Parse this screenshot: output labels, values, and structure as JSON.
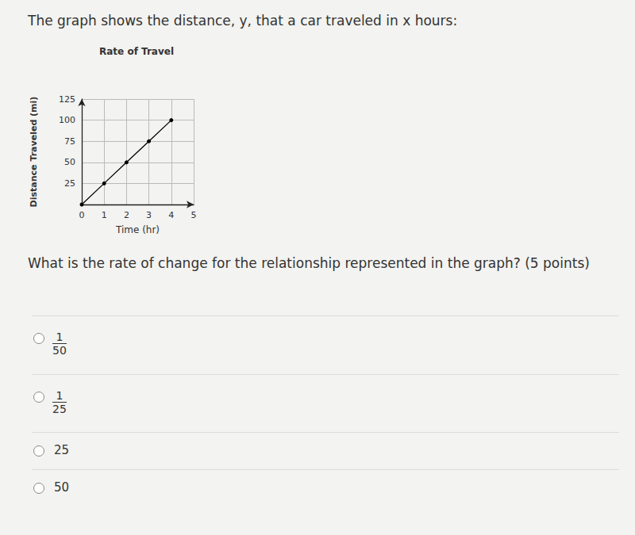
{
  "question": {
    "prompt": "The graph shows the distance, y, that a car traveled in x hours:",
    "text": "What is the rate of change for the relationship represented in the graph? (5 points)",
    "options": [
      {
        "numerator": "1",
        "denominator": "50"
      },
      {
        "numerator": "1",
        "denominator": "25"
      },
      {
        "text": "25"
      },
      {
        "text": "50"
      }
    ]
  },
  "chart_data": {
    "type": "line",
    "title": "Rate of Travel",
    "x_label": "Time (hr)",
    "y_label": "Distance Traveled (mi)",
    "x_name": "x",
    "y_name": "y",
    "x": [
      0,
      1,
      2,
      3,
      4
    ],
    "values": [
      0,
      25,
      50,
      75,
      100
    ],
    "color": "#000000",
    "marker": "circle",
    "xlim": [
      0,
      5
    ],
    "xticks": [
      0,
      1,
      2,
      3,
      4,
      5
    ],
    "ylim": [
      0,
      125
    ],
    "yticks": [
      25,
      50,
      75,
      100,
      125
    ],
    "grid": true
  }
}
